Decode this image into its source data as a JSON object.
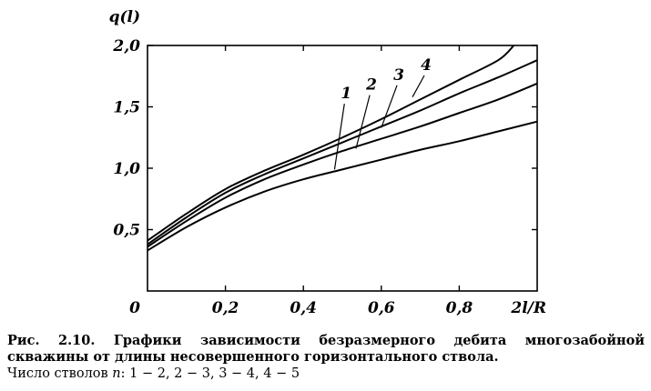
{
  "chart_data": {
    "type": "line",
    "ylabel": "q(l)",
    "xlabel": "2l/R",
    "origin_label": "0",
    "xlim": [
      0,
      1.0
    ],
    "ylim": [
      0,
      2.0
    ],
    "x_ticks": [
      {
        "value": 0.2,
        "label": "0,2"
      },
      {
        "value": 0.4,
        "label": "0,4"
      },
      {
        "value": 0.6,
        "label": "0,6"
      },
      {
        "value": 0.8,
        "label": "0,8"
      }
    ],
    "y_ticks": [
      {
        "value": 0.5,
        "label": "0,5"
      },
      {
        "value": 1.0,
        "label": "1,0"
      },
      {
        "value": 1.5,
        "label": "1,5"
      },
      {
        "value": 2.0,
        "label": "2,0"
      }
    ],
    "grid": false,
    "legend": "none",
    "series": [
      {
        "name": "1",
        "label_pos": [
          0.51,
          1.57
        ],
        "leader_to": [
          0.48,
          0.99
        ],
        "points": [
          [
            0,
            0.33
          ],
          [
            0.1,
            0.52
          ],
          [
            0.2,
            0.68
          ],
          [
            0.3,
            0.81
          ],
          [
            0.4,
            0.91
          ],
          [
            0.5,
            0.99
          ],
          [
            0.6,
            1.07
          ],
          [
            0.7,
            1.15
          ],
          [
            0.8,
            1.22
          ],
          [
            0.9,
            1.3
          ],
          [
            1.0,
            1.38
          ]
        ]
      },
      {
        "name": "2",
        "label_pos": [
          0.575,
          1.64
        ],
        "leader_to": [
          0.535,
          1.16
        ],
        "points": [
          [
            0,
            0.36
          ],
          [
            0.1,
            0.57
          ],
          [
            0.2,
            0.76
          ],
          [
            0.3,
            0.91
          ],
          [
            0.4,
            1.03
          ],
          [
            0.5,
            1.14
          ],
          [
            0.6,
            1.24
          ],
          [
            0.7,
            1.34
          ],
          [
            0.8,
            1.45
          ],
          [
            0.9,
            1.56
          ],
          [
            1.0,
            1.69
          ]
        ]
      },
      {
        "name": "3",
        "label_pos": [
          0.645,
          1.72
        ],
        "leader_to": [
          0.6,
          1.33
        ],
        "points": [
          [
            0,
            0.38
          ],
          [
            0.1,
            0.6
          ],
          [
            0.2,
            0.8
          ],
          [
            0.3,
            0.95
          ],
          [
            0.4,
            1.08
          ],
          [
            0.5,
            1.21
          ],
          [
            0.6,
            1.34
          ],
          [
            0.7,
            1.47
          ],
          [
            0.8,
            1.61
          ],
          [
            0.9,
            1.74
          ],
          [
            1.0,
            1.88
          ]
        ]
      },
      {
        "name": "4",
        "label_pos": [
          0.715,
          1.8
        ],
        "leader_to": [
          0.68,
          1.58
        ],
        "points": [
          [
            0,
            0.41
          ],
          [
            0.1,
            0.63
          ],
          [
            0.2,
            0.83
          ],
          [
            0.3,
            0.98
          ],
          [
            0.4,
            1.11
          ],
          [
            0.5,
            1.25
          ],
          [
            0.6,
            1.4
          ],
          [
            0.7,
            1.56
          ],
          [
            0.8,
            1.72
          ],
          [
            0.9,
            1.88
          ],
          [
            0.94,
            2.0
          ]
        ]
      }
    ]
  },
  "caption": {
    "main": "Рис. 2.10. Графики зависимости безразмерного дебита многозабойной скважины от длины несовершенного горизонтального ствола.",
    "note_prefix": "Число стволов ",
    "note_var": "n",
    "note_text": ": 1 − 2, 2 − 3, 3 − 4, 4 − 5"
  }
}
